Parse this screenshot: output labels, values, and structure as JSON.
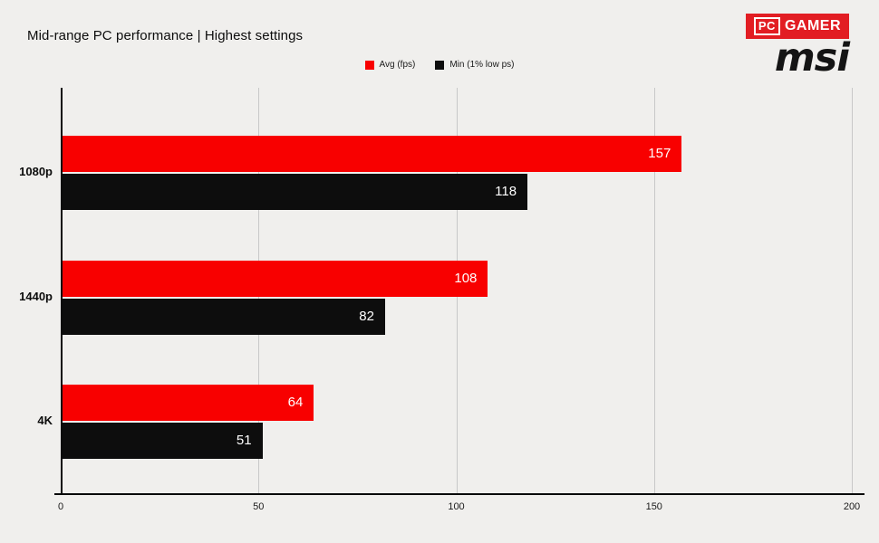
{
  "header": {
    "title": "Mid-range PC performance | Highest settings",
    "logo_pc": "PC",
    "logo_gamer": "GAMER",
    "logo_msi": "msi"
  },
  "legend": [
    {
      "label": "Avg (fps)",
      "color": "#f80000"
    },
    {
      "label": "Min (1% low ps)",
      "color": "#0d0d0d"
    }
  ],
  "chart_data": {
    "type": "bar",
    "orientation": "horizontal",
    "title": "Mid-range PC performance | Highest settings",
    "categories": [
      "1080p",
      "1440p",
      "4K"
    ],
    "series": [
      {
        "name": "Avg (fps)",
        "color": "#f80000",
        "values": [
          157,
          108,
          64
        ]
      },
      {
        "name": "Min (1% low ps)",
        "color": "#0d0d0d",
        "values": [
          118,
          82,
          51
        ]
      }
    ],
    "xlabel": "",
    "ylabel": "",
    "xlim": [
      0,
      200
    ],
    "xticks": [
      0,
      50,
      100,
      150,
      200
    ],
    "grid": true,
    "legend_position": "top-center",
    "background": "#f0efed"
  }
}
